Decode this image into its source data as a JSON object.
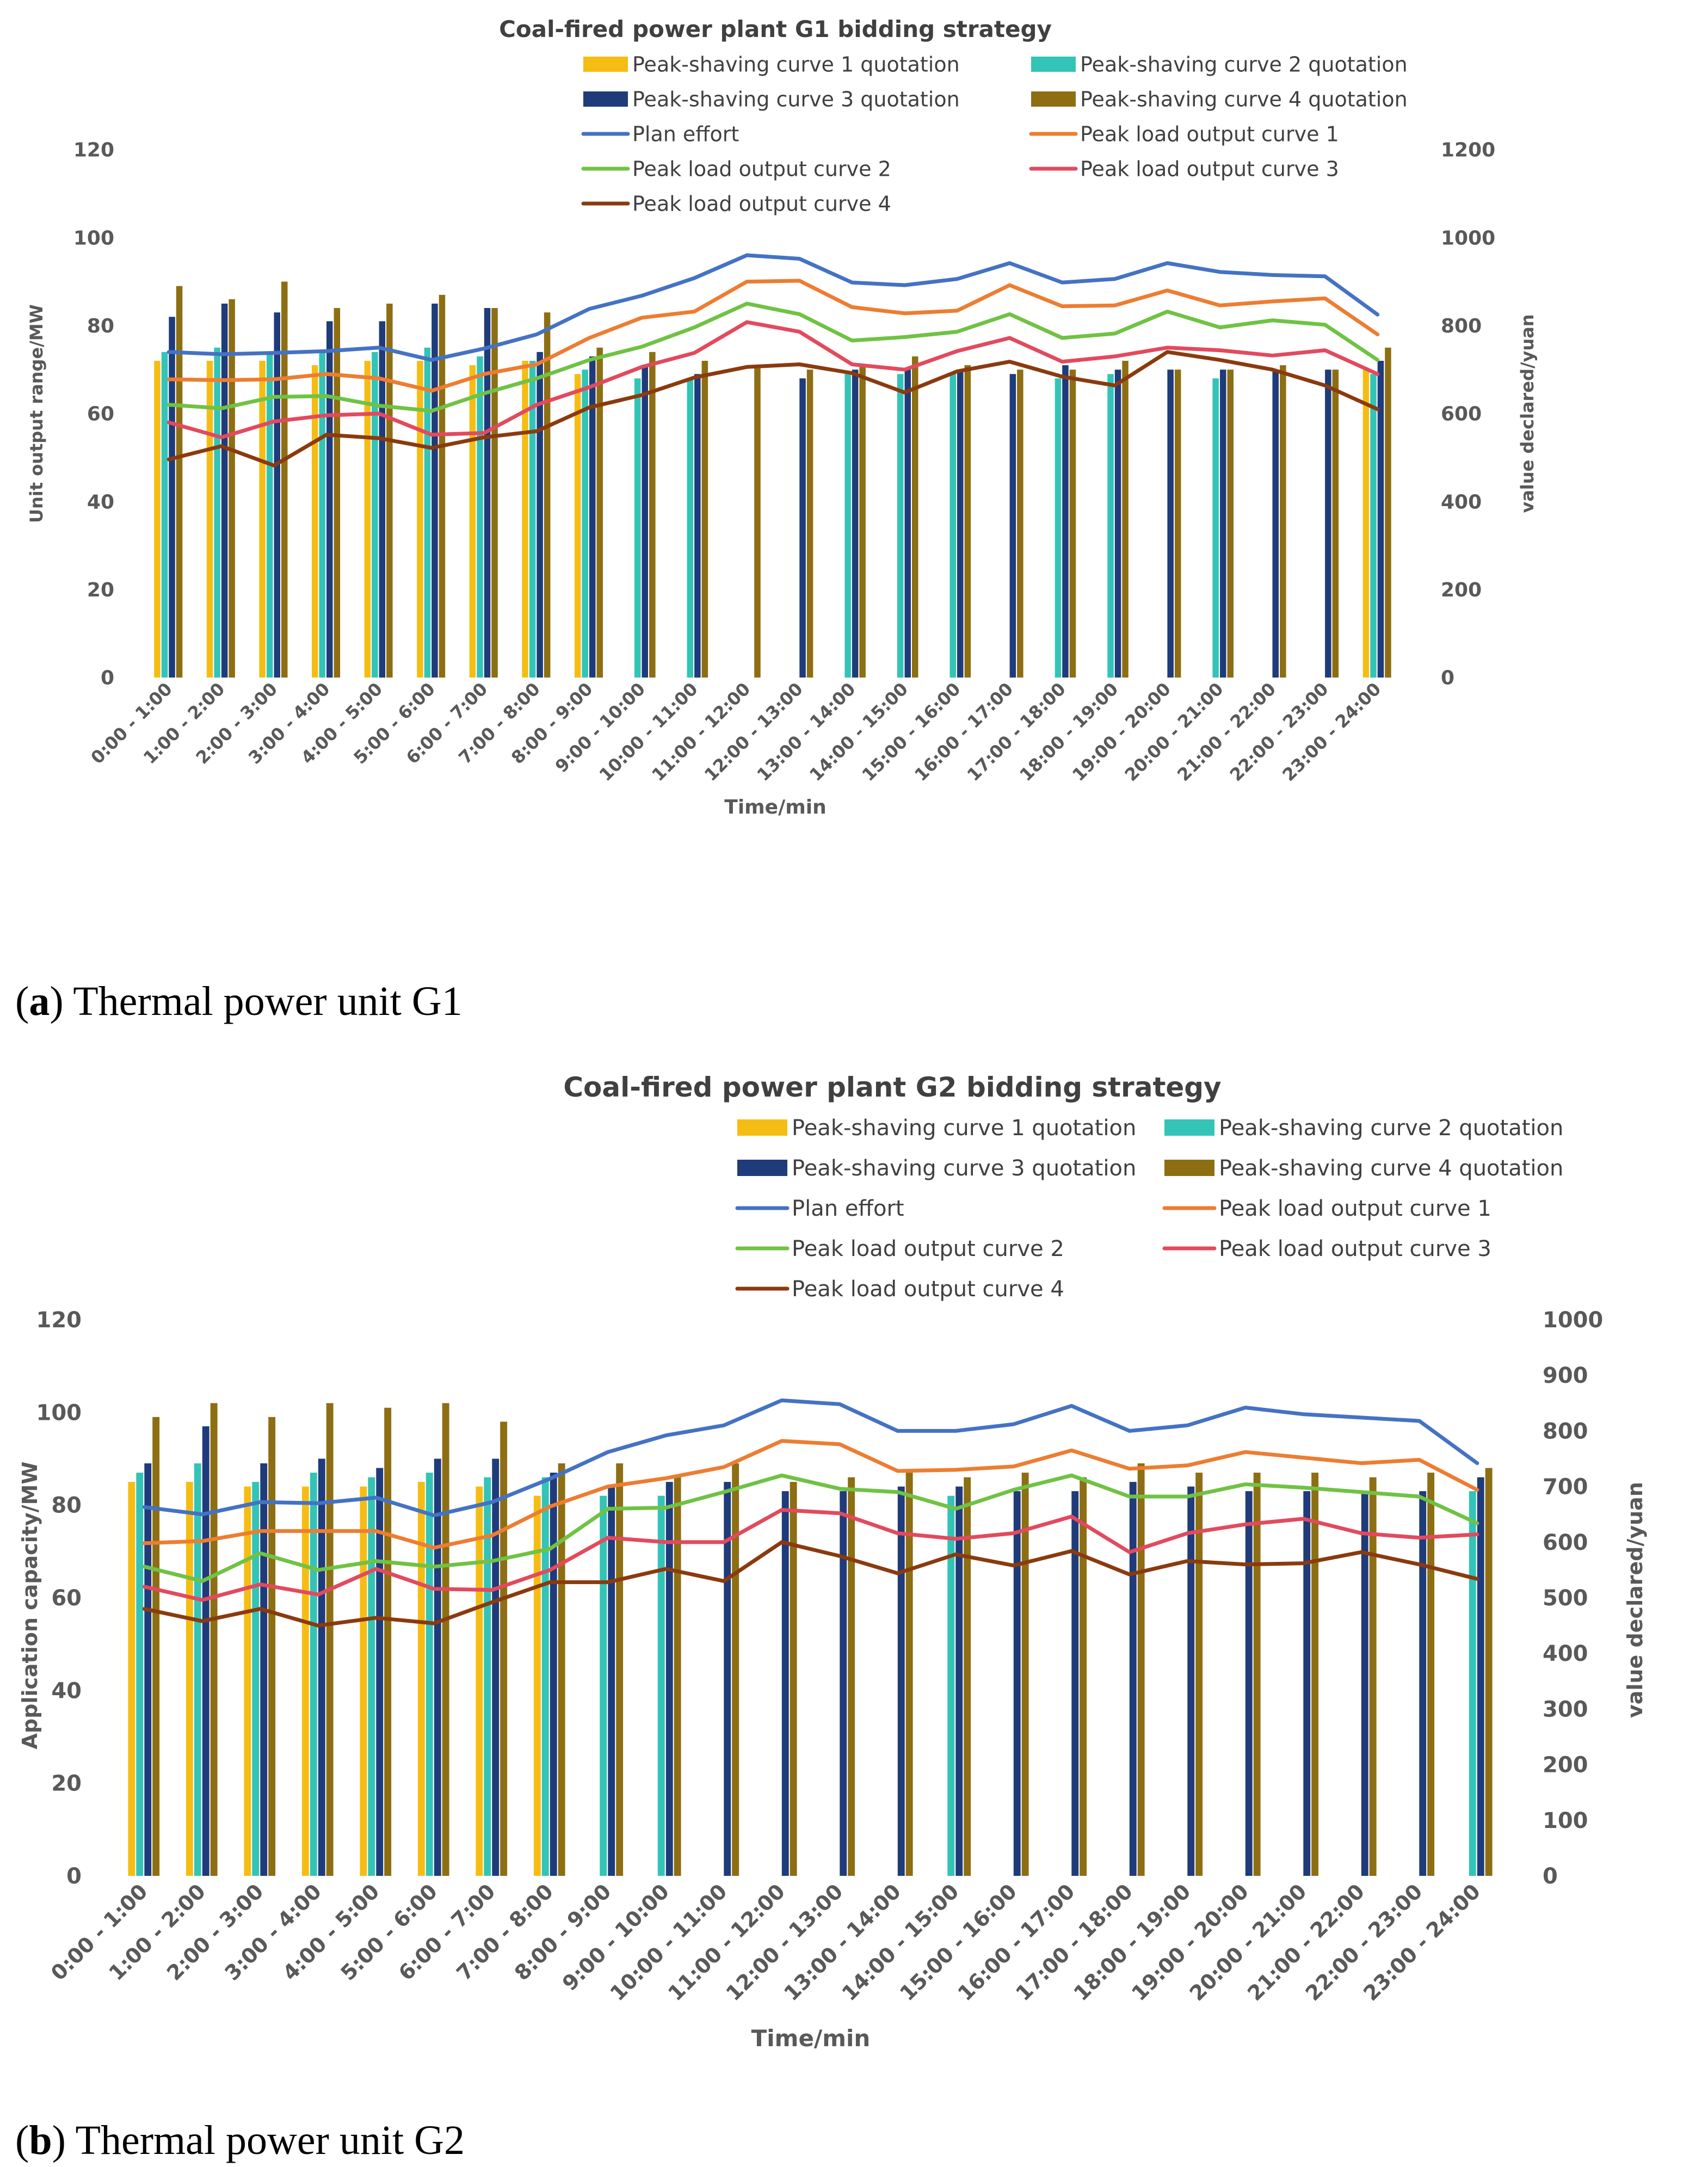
{
  "colors": {
    "ps1": "#f5bd14",
    "ps2": "#33c4b7",
    "ps3": "#1f3b7a",
    "ps4": "#8d6e12",
    "plan": "#4472c4",
    "plo1": "#ed7d31",
    "plo2": "#70c244",
    "plo3": "#e24a5e",
    "plo4": "#8b3a0e",
    "text": "#595959",
    "title": "#404040"
  },
  "chart_data": [
    {
      "type": "bar+line",
      "title": "Coal-fired power plant G1 bidding strategy",
      "xlabel": "Time/min",
      "ylabel": "Unit output range/MW",
      "y2label": "value declared/yuan",
      "ylim": [
        0,
        120
      ],
      "y_ticks": [
        "0",
        "20",
        "40",
        "60",
        "80",
        "100",
        "120"
      ],
      "y2lim": [
        0,
        1200
      ],
      "y2_ticks": [
        "0",
        "200",
        "400",
        "600",
        "800",
        "1000",
        "1200"
      ],
      "legend_position": "top",
      "categories": [
        "0:00 - 1:00",
        "1:00 - 2:00",
        "2:00 - 3:00",
        "3:00 - 4:00",
        "4:00 - 5:00",
        "5:00 - 6:00",
        "6:00 - 7:00",
        "7:00 - 8:00",
        "8:00 - 9:00",
        "9:00 - 10:00",
        "10:00 - 11:00",
        "11:00 - 12:00",
        "12:00 - 13:00",
        "13:00 - 14:00",
        "14:00 - 15:00",
        "15:00 - 16:00",
        "16:00 - 17:00",
        "17:00 - 18:00",
        "18:00 - 19:00",
        "19:00 - 20:00",
        "20:00 - 21:00",
        "21:00 - 22:00",
        "22:00 - 23:00",
        "23:00 - 24:00"
      ],
      "bar_series": [
        {
          "name": "Peak-shaving curve 1 quotation",
          "color_key": "ps1",
          "values": [
            72,
            72,
            72,
            71,
            72,
            72,
            71,
            72,
            69,
            null,
            null,
            null,
            null,
            null,
            null,
            null,
            null,
            null,
            null,
            null,
            null,
            null,
            null,
            70
          ]
        },
        {
          "name": "Peak-shaving curve 2 quotation",
          "color_key": "ps2",
          "values": [
            74,
            75,
            74,
            74,
            74,
            75,
            73,
            72,
            70,
            68,
            68,
            null,
            null,
            69,
            69,
            69,
            null,
            68,
            69,
            null,
            68,
            null,
            null,
            69
          ]
        },
        {
          "name": "Peak-shaving curve 3 quotation",
          "color_key": "ps3",
          "values": [
            82,
            85,
            83,
            81,
            81,
            85,
            84,
            74,
            73,
            71,
            69,
            null,
            68,
            70,
            70,
            70,
            69,
            71,
            70,
            70,
            70,
            70,
            70,
            72
          ]
        },
        {
          "name": "Peak-shaving curve 4 quotation",
          "color_key": "ps4",
          "values": [
            89,
            86,
            90,
            84,
            85,
            87,
            84,
            83,
            75,
            74,
            72,
            71,
            70,
            71,
            73,
            71,
            70,
            70,
            72,
            70,
            70,
            71,
            70,
            75
          ]
        }
      ],
      "line_series": [
        {
          "name": "Plan effort",
          "color_key": "plan",
          "axis": "secondary",
          "values": [
            740,
            735,
            738,
            742,
            750,
            722,
            748,
            780,
            838,
            868,
            908,
            960,
            952,
            898,
            892,
            906,
            942,
            898,
            906,
            942,
            922,
            915,
            912,
            825
          ]
        },
        {
          "name": "Peak load output curve 1",
          "color_key": "plo1",
          "axis": "secondary",
          "values": [
            678,
            676,
            678,
            690,
            680,
            652,
            690,
            712,
            772,
            818,
            832,
            900,
            902,
            842,
            828,
            834,
            892,
            844,
            846,
            880,
            846,
            855,
            862,
            780
          ]
        },
        {
          "name": "Peak load output curve 2",
          "color_key": "plo2",
          "axis": "secondary",
          "values": [
            620,
            612,
            638,
            640,
            618,
            606,
            646,
            680,
            722,
            752,
            796,
            850,
            826,
            766,
            774,
            786,
            826,
            772,
            782,
            832,
            796,
            812,
            802,
            722
          ]
        },
        {
          "name": "Peak load output curve 3",
          "color_key": "plo3",
          "axis": "secondary",
          "values": [
            580,
            546,
            582,
            596,
            600,
            552,
            556,
            620,
            660,
            706,
            738,
            808,
            786,
            712,
            700,
            742,
            772,
            718,
            730,
            750,
            744,
            732,
            744,
            690
          ]
        },
        {
          "name": "Peak load output curve 4",
          "color_key": "plo4",
          "axis": "secondary",
          "values": [
            496,
            526,
            482,
            552,
            544,
            522,
            546,
            560,
            614,
            642,
            682,
            706,
            712,
            692,
            648,
            696,
            718,
            684,
            664,
            740,
            722,
            700,
            664,
            610
          ]
        }
      ]
    },
    {
      "type": "bar+line",
      "title": "Coal-fired power plant G2 bidding strategy",
      "xlabel": "Time/min",
      "ylabel": "Application capacity/MW",
      "y2label": "value declared/yuan",
      "ylim": [
        0,
        120
      ],
      "y_ticks": [
        "0",
        "20",
        "40",
        "60",
        "80",
        "100",
        "120"
      ],
      "y2lim": [
        0,
        1000
      ],
      "y2_ticks": [
        "0",
        "100",
        "200",
        "300",
        "400",
        "500",
        "600",
        "700",
        "800",
        "900",
        "1000"
      ],
      "legend_position": "top-right",
      "categories": [
        "0:00 - 1:00",
        "1:00 - 2:00",
        "2:00 - 3:00",
        "3:00 - 4:00",
        "4:00 - 5:00",
        "5:00 - 6:00",
        "6:00 - 7:00",
        "7:00 - 8:00",
        "8:00 - 9:00",
        "9:00 - 10:00",
        "10:00 - 11:00",
        "11:00 - 12:00",
        "12:00 - 13:00",
        "13:00 - 14:00",
        "14:00 - 15:00",
        "15:00 - 16:00",
        "16:00 - 17:00",
        "17:00 - 18:00",
        "18:00 - 19:00",
        "19:00 - 20:00",
        "20:00 - 21:00",
        "21:00 - 22:00",
        "22:00 - 23:00",
        "23:00 - 24:00"
      ],
      "bar_series": [
        {
          "name": "Peak-shaving curve 1 quotation",
          "color_key": "ps1",
          "values": [
            85,
            85,
            84,
            84,
            84,
            85,
            84,
            82,
            null,
            null,
            null,
            null,
            null,
            null,
            null,
            null,
            null,
            null,
            null,
            null,
            null,
            null,
            null,
            null
          ]
        },
        {
          "name": "Peak-shaving curve 2 quotation",
          "color_key": "ps2",
          "values": [
            87,
            89,
            85,
            87,
            86,
            87,
            86,
            86,
            82,
            82,
            null,
            null,
            null,
            null,
            82,
            null,
            null,
            null,
            null,
            null,
            null,
            null,
            null,
            83
          ]
        },
        {
          "name": "Peak-shaving curve 3 quotation",
          "color_key": "ps3",
          "values": [
            89,
            97,
            89,
            90,
            88,
            90,
            90,
            87,
            84,
            85,
            85,
            83,
            83,
            84,
            84,
            83,
            83,
            85,
            84,
            83,
            83,
            83,
            83,
            86
          ]
        },
        {
          "name": "Peak-shaving curve 4 quotation",
          "color_key": "ps4",
          "values": [
            99,
            102,
            99,
            102,
            101,
            102,
            98,
            89,
            89,
            86,
            89,
            85,
            86,
            87,
            86,
            87,
            86,
            89,
            87,
            87,
            87,
            86,
            87,
            88
          ]
        }
      ],
      "line_series": [
        {
          "name": "Plan effort",
          "color_key": "plan",
          "axis": "secondary",
          "values": [
            663,
            650,
            672,
            670,
            680,
            648,
            672,
            714,
            762,
            792,
            810,
            855,
            848,
            800,
            800,
            812,
            845,
            800,
            810,
            842,
            830,
            824,
            818,
            742
          ]
        },
        {
          "name": "Peak load output curve 1",
          "color_key": "plo1",
          "axis": "secondary",
          "values": [
            598,
            602,
            620,
            620,
            620,
            590,
            612,
            664,
            700,
            715,
            735,
            782,
            776,
            728,
            730,
            736,
            765,
            732,
            738,
            762,
            752,
            742,
            748,
            694
          ]
        },
        {
          "name": "Peak load output curve 2",
          "color_key": "plo2",
          "axis": "secondary",
          "values": [
            556,
            530,
            580,
            550,
            566,
            556,
            566,
            588,
            660,
            662,
            690,
            720,
            696,
            690,
            660,
            694,
            720,
            682,
            682,
            704,
            698,
            690,
            682,
            634
          ]
        },
        {
          "name": "Peak load output curve 3",
          "color_key": "plo3",
          "axis": "secondary",
          "values": [
            520,
            496,
            524,
            506,
            552,
            516,
            514,
            550,
            608,
            600,
            600,
            658,
            652,
            616,
            606,
            616,
            646,
            582,
            616,
            632,
            642,
            616,
            608,
            614
          ]
        },
        {
          "name": "Peak load output curve 4",
          "color_key": "plo4",
          "axis": "secondary",
          "values": [
            480,
            458,
            480,
            450,
            464,
            454,
            492,
            528,
            528,
            552,
            530,
            600,
            575,
            544,
            578,
            558,
            584,
            542,
            566,
            560,
            562,
            582,
            560,
            534
          ]
        }
      ]
    }
  ],
  "captions": [
    {
      "label": "a",
      "text": "Thermal power unit G1"
    },
    {
      "label": "b",
      "text": "Thermal power unit G2"
    }
  ]
}
